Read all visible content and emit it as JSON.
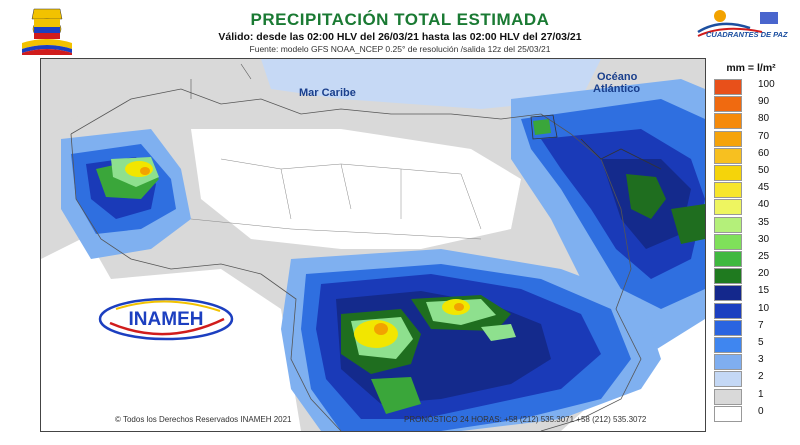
{
  "header": {
    "title": "PRECIPITACIÓN TOTAL ESTIMADA",
    "subtitle": "Válido: desde las 02:00 HLV del 26/03/21 hasta las 02:00 HLV del 27/03/21",
    "source": "Fuente: modelo GFS NOAA_NCEP 0.25° de resolución /salida 12z del 25/03/21",
    "right_logo_text": "CUADRANTES DE PAZ"
  },
  "map": {
    "sea_labels": [
      "Mar Caribe",
      "Océano",
      "Atlántico"
    ],
    "inameh_logo_text": "INAMEH",
    "colors": {
      "dry": "#ffffff",
      "light_gray": "#d9d9d9",
      "pale_blue": "#c6d9f5",
      "light_blue": "#7fb0f0",
      "mid_blue": "#2f6fe0",
      "dark_blue": "#1a3ab8",
      "navy": "#142a8c",
      "dark_green": "#1f6e1f",
      "green": "#3aa63a",
      "light_green": "#8ee08e",
      "yellow": "#f2e600",
      "orange": "#f2a200"
    }
  },
  "legend": {
    "title": "mm = l/m²",
    "items": [
      {
        "label": "100",
        "color": "#e8501a"
      },
      {
        "label": "90",
        "color": "#f06a10"
      },
      {
        "label": "80",
        "color": "#f58a0a"
      },
      {
        "label": "70",
        "color": "#f5a30a"
      },
      {
        "label": "60",
        "color": "#f7c020"
      },
      {
        "label": "50",
        "color": "#f5d40a"
      },
      {
        "label": "45",
        "color": "#f7e62c"
      },
      {
        "label": "40",
        "color": "#eef560"
      },
      {
        "label": "35",
        "color": "#b4f07a"
      },
      {
        "label": "30",
        "color": "#7fe05a"
      },
      {
        "label": "25",
        "color": "#3fb83f"
      },
      {
        "label": "20",
        "color": "#1f7a1f"
      },
      {
        "label": "15",
        "color": "#14288c"
      },
      {
        "label": "10",
        "color": "#1c3fc0"
      },
      {
        "label": "7",
        "color": "#2a64e0"
      },
      {
        "label": "5",
        "color": "#3f86f0"
      },
      {
        "label": "3",
        "color": "#7faef0"
      },
      {
        "label": "2",
        "color": "#c4d8f5"
      },
      {
        "label": "1",
        "color": "#d9d9d9"
      },
      {
        "label": "0",
        "color": "#ffffff"
      }
    ]
  },
  "footer": {
    "copyright": "© Todos los Derechos Reservados INAMEH 2021",
    "forecast_phone": "PRONÓSTICO 24 HORAS: +58 (212) 535.3071 +58 (212) 535.3072"
  }
}
